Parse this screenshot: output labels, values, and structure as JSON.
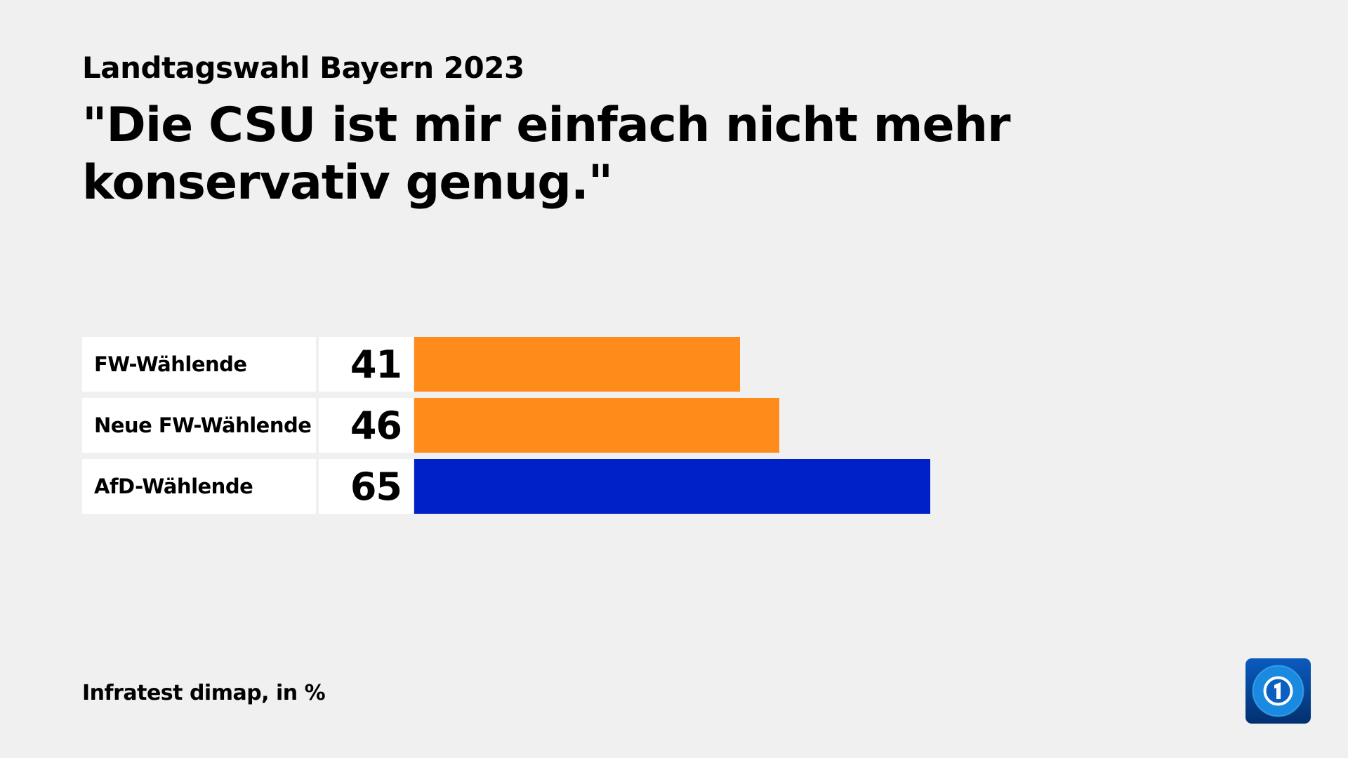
{
  "header": {
    "subtitle": "Landtagswahl Bayern 2023",
    "title": "\"Die CSU ist mir einfach nicht mehr konservativ genug.\""
  },
  "chart_data": {
    "type": "bar",
    "orientation": "horizontal",
    "categories": [
      "FW-Wählende",
      "Neue FW-Wählende",
      "AfD-Wählende"
    ],
    "values": [
      41,
      46,
      65
    ],
    "value_labels": [
      "41",
      "46",
      "65"
    ],
    "colors": [
      "#ff8c1a",
      "#ff8c1a",
      "#0020c8"
    ],
    "title": "\"Die CSU ist mir einfach nicht mehr konservativ genug.\"",
    "unit": "%"
  },
  "footer": {
    "source": "Infratest dimap, in %"
  },
  "logo": {
    "name": "tagesschau-logo",
    "text": "1"
  }
}
